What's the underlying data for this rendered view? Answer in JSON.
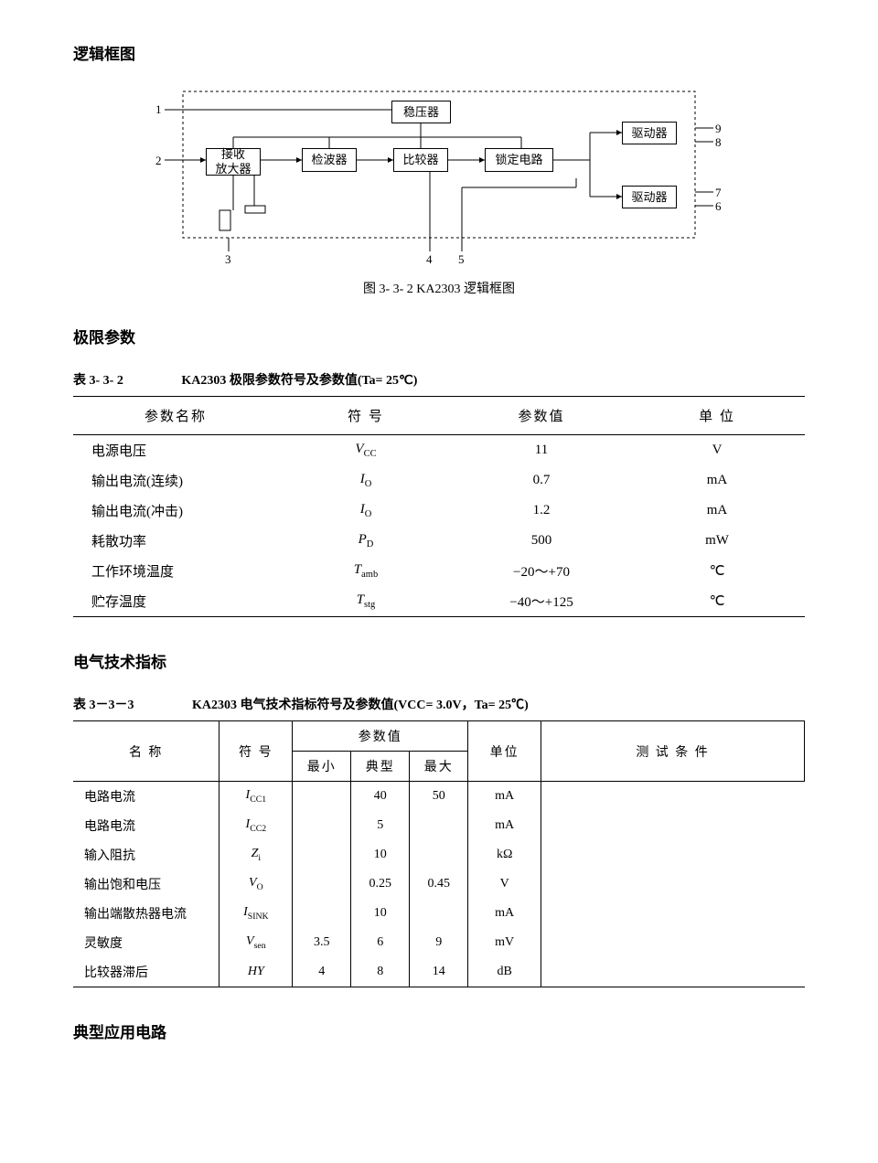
{
  "section1_title": "逻辑框图",
  "diagram": {
    "blocks": {
      "regulator": "稳压器",
      "rx_amp": "接收\n放大器",
      "detector": "检波器",
      "comparator": "比较器",
      "lock": "锁定电路",
      "driver_top": "驱动器",
      "driver_bot": "驱动器"
    },
    "pins": {
      "p1": "1",
      "p2": "2",
      "p3": "3",
      "p4": "4",
      "p5": "5",
      "p6": "6",
      "p7": "7",
      "p8": "8",
      "p9": "9"
    },
    "caption": "图 3- 3- 2   KA2303 逻辑框图"
  },
  "section2_title": "极限参数",
  "table1": {
    "num": "表 3- 3- 2",
    "title": "KA2303 极限参数符号及参数值(Ta= 25℃)",
    "headers": [
      "参数名称",
      "符    号",
      "参数值",
      "单    位"
    ],
    "rows": [
      {
        "name": "电源电压",
        "sym": "V",
        "sub": "CC",
        "val": "11",
        "unit": "V"
      },
      {
        "name": "输出电流(连续)",
        "sym": "I",
        "sub": "O",
        "val": "0.7",
        "unit": "mA"
      },
      {
        "name": "输出电流(冲击)",
        "sym": "I",
        "sub": "O",
        "val": "1.2",
        "unit": "mA"
      },
      {
        "name": "耗散功率",
        "sym": "P",
        "sub": "D",
        "val": "500",
        "unit": "mW"
      },
      {
        "name": "工作环境温度",
        "sym": "T",
        "sub": "amb",
        "val": "−20～+70",
        "unit": "℃"
      },
      {
        "name": "贮存温度",
        "sym": "T",
        "sub": "stg",
        "val": "−40～+125",
        "unit": "℃"
      }
    ]
  },
  "section3_title": "电气技术指标",
  "table2": {
    "num": "表 3－3－3",
    "title": "KA2303 电气技术指标符号及参数值(VCC= 3.0V，Ta= 25℃)",
    "h_name": "名    称",
    "h_sym": "符 号",
    "h_val": "参数值",
    "h_min": "最小",
    "h_typ": "典型",
    "h_max": "最大",
    "h_unit": "单位",
    "h_cond": "测  试  条  件",
    "rows": [
      {
        "name": "电路电流",
        "sym": "I",
        "sub": "CC1",
        "min": "",
        "typ": "40",
        "max": "50",
        "unit": "mA",
        "cond": ""
      },
      {
        "name": "电路电流",
        "sym": "I",
        "sub": "CC2",
        "min": "",
        "typ": "5",
        "max": "",
        "unit": "mA",
        "cond": ""
      },
      {
        "name": "输入阻抗",
        "sym": "Z",
        "sub": "i",
        "min": "",
        "typ": "10",
        "max": "",
        "unit": "kΩ",
        "cond": ""
      },
      {
        "name": "输出饱和电压",
        "sym": "V",
        "sub": "O",
        "min": "",
        "typ": "0.25",
        "max": "0.45",
        "unit": "V",
        "cond": ""
      },
      {
        "name": "输出端散热器电流",
        "sym": "I",
        "sub": "SINK",
        "min": "",
        "typ": "10",
        "max": "",
        "unit": "mA",
        "cond": ""
      },
      {
        "name": "灵敏度",
        "sym": "V",
        "sub": "sen",
        "min": "3.5",
        "typ": "6",
        "max": "9",
        "unit": "mV",
        "cond": ""
      },
      {
        "name": "比较器滞后",
        "sym": "HY",
        "sub": "",
        "min": "4",
        "typ": "8",
        "max": "14",
        "unit": "dB",
        "cond": ""
      }
    ]
  },
  "section4_title": "典型应用电路"
}
